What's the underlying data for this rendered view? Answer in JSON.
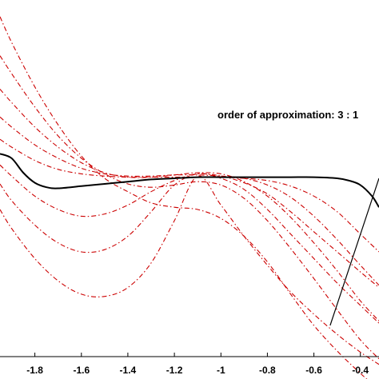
{
  "chart_data": {
    "type": "line",
    "title": "",
    "xlabel": "",
    "ylabel": "",
    "xlim": [
      -1.95,
      -0.32
    ],
    "ylim": [
      -1.6,
      1.6
    ],
    "grid": false,
    "x_ticks": [
      -1.8,
      -1.6,
      -1.4,
      -1.2,
      -1,
      -0.8,
      -0.6,
      -0.4
    ],
    "x_tick_labels": [
      "-1.8",
      "-1.6",
      "-1.4",
      "-1.2",
      "-1",
      "-0.8",
      "-0.6",
      "-0.4"
    ],
    "annotation": "order of approximation: 3 : 1",
    "exact_series": {
      "color": "#000000",
      "style": "solid",
      "x": [
        -1.95,
        -1.9,
        -1.85,
        -1.8,
        -1.75,
        -1.7,
        -1.6,
        -1.5,
        -1.4,
        -1.3,
        -1.2,
        -1.1,
        -1.0,
        -0.9,
        -0.8,
        -0.7,
        -0.6,
        -0.5,
        -0.45,
        -0.4,
        -0.35,
        -0.32
      ],
      "y": [
        0.22,
        0.18,
        0.05,
        -0.04,
        -0.08,
        -0.09,
        -0.07,
        -0.05,
        -0.03,
        -0.01,
        0.0,
        0.01,
        0.01,
        0.01,
        0.01,
        0.01,
        0.01,
        0.0,
        -0.02,
        -0.06,
        -0.16,
        -0.26
      ]
    },
    "tangent_line": {
      "color": "#000000",
      "style": "solid",
      "x": [
        -0.53,
        -0.32
      ],
      "y": [
        -1.32,
        0.0
      ]
    },
    "approximation_series": {
      "color": "#cc0000",
      "style": "dash-dot",
      "x": [
        -1.95,
        -1.9,
        -1.8,
        -1.7,
        -1.6,
        -1.5,
        -1.4,
        -1.3,
        -1.2,
        -1.1,
        -1.0,
        -0.9,
        -0.8,
        -0.7,
        -0.6,
        -0.5,
        -0.4,
        -0.32
      ],
      "series": [
        {
          "y": [
            1.45,
            1.22,
            0.82,
            0.48,
            0.2,
            0.0,
            -0.12,
            -0.22,
            -0.26,
            -0.28,
            -0.36,
            -0.52,
            -0.75,
            -1.04,
            -1.32,
            -1.55,
            -1.75,
            -1.9
          ]
        },
        {
          "y": [
            1.1,
            0.94,
            0.64,
            0.38,
            0.18,
            0.04,
            -0.05,
            -0.08,
            -0.06,
            -0.03,
            -0.06,
            -0.18,
            -0.38,
            -0.63,
            -0.9,
            -1.18,
            -1.45,
            -1.62
          ]
        },
        {
          "y": [
            0.8,
            0.68,
            0.46,
            0.28,
            0.14,
            0.05,
            0.01,
            0.01,
            0.03,
            0.05,
            0.04,
            -0.03,
            -0.16,
            -0.35,
            -0.58,
            -0.83,
            -1.1,
            -1.28
          ]
        },
        {
          "y": [
            0.55,
            0.46,
            0.3,
            0.18,
            0.09,
            0.04,
            0.02,
            0.02,
            0.03,
            0.03,
            0.02,
            0.0,
            -0.06,
            -0.17,
            -0.34,
            -0.55,
            -0.78,
            -0.96
          ]
        },
        {
          "y": [
            0.35,
            0.28,
            0.16,
            0.08,
            0.04,
            0.02,
            0.01,
            0.01,
            0.01,
            0.01,
            0.01,
            0.0,
            -0.02,
            -0.07,
            -0.16,
            -0.3,
            -0.5,
            -0.66
          ]
        },
        {
          "y": [
            -0.28,
            -0.45,
            -0.72,
            -0.92,
            -1.04,
            -1.06,
            -0.98,
            -0.76,
            -0.38,
            0.02,
            -0.24,
            -0.52,
            -0.78,
            -1.02,
            -1.22,
            -1.4,
            -1.56,
            -1.67
          ]
        },
        {
          "y": [
            -0.05,
            -0.2,
            -0.42,
            -0.58,
            -0.66,
            -0.64,
            -0.52,
            -0.3,
            -0.06,
            0.04,
            0.0,
            -0.1,
            -0.28,
            -0.5,
            -0.72,
            -0.94,
            -1.14,
            -1.3
          ]
        },
        {
          "y": [
            0.12,
            0.02,
            -0.16,
            -0.28,
            -0.34,
            -0.32,
            -0.24,
            -0.12,
            -0.02,
            0.04,
            0.02,
            -0.04,
            -0.14,
            -0.3,
            -0.48,
            -0.66,
            -0.84,
            -0.98
          ]
        }
      ]
    }
  }
}
